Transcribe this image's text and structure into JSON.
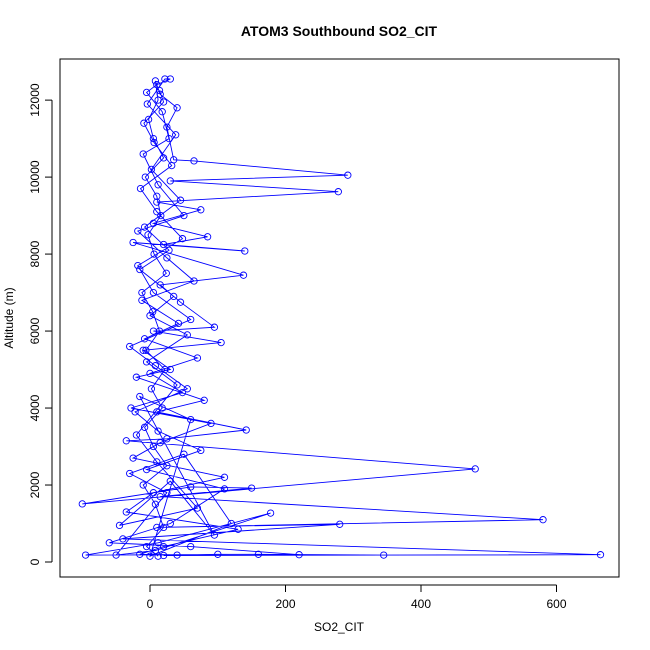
{
  "chart_data": {
    "type": "line",
    "title": "ATOM3 Southbound SO2_CIT",
    "xlabel": "SO2_CIT",
    "ylabel": "Altitude (m)",
    "xlim": [
      -115,
      690
    ],
    "ylim": [
      -300,
      12900
    ],
    "x_ticks": [
      0,
      200,
      400,
      600
    ],
    "x_tick_labels": [
      "0",
      "200",
      "400",
      "600"
    ],
    "y_ticks": [
      0,
      2000,
      4000,
      6000,
      8000,
      10000,
      12000
    ],
    "y_tick_labels": [
      "0",
      "2000",
      "4000",
      "6000",
      "8000",
      "10000",
      "12000"
    ],
    "marker": "open-circle",
    "grid": false,
    "colors": {
      "series": "#0000ff",
      "axis": "#000000",
      "background": "#ffffff"
    },
    "series": [
      {
        "points": [
          [
            12,
            150
          ],
          [
            -5,
            400
          ],
          [
            20,
            900
          ],
          [
            8,
            1500
          ],
          [
            -10,
            2000
          ],
          [
            25,
            2500
          ],
          [
            5,
            3000
          ],
          [
            -8,
            3500
          ],
          [
            18,
            4000
          ],
          [
            2,
            4500
          ],
          [
            22,
            5000
          ],
          [
            -6,
            5500
          ],
          [
            14,
            6000
          ],
          [
            4,
            6500
          ],
          [
            -12,
            7000
          ],
          [
            24,
            7500
          ],
          [
            6,
            8000
          ],
          [
            -3,
            8500
          ],
          [
            16,
            9000
          ],
          [
            10,
            9500
          ],
          [
            -7,
            10000
          ],
          [
            20,
            10500
          ],
          [
            5,
            11000
          ],
          [
            -2,
            11500
          ],
          [
            12,
            12000
          ],
          [
            8,
            12500
          ],
          [
            15,
            12150
          ],
          [
            40,
            11800
          ],
          [
            25,
            11300
          ],
          [
            35,
            10450
          ],
          [
            65,
            10420
          ],
          [
            292,
            10050
          ],
          [
            30,
            9900
          ],
          [
            278,
            9620
          ],
          [
            10,
            9350
          ],
          [
            75,
            9150
          ],
          [
            5,
            8800
          ],
          [
            85,
            8450
          ],
          [
            20,
            8250
          ],
          [
            140,
            8080
          ],
          [
            -25,
            8300
          ],
          [
            138,
            7450
          ],
          [
            15,
            7200
          ],
          [
            45,
            6750
          ],
          [
            95,
            6100
          ],
          [
            5,
            6000
          ],
          [
            105,
            5700
          ],
          [
            -10,
            5500
          ],
          [
            30,
            5000
          ],
          [
            -20,
            4800
          ],
          [
            80,
            4200
          ],
          [
            10,
            3900
          ],
          [
            142,
            3430
          ],
          [
            25,
            3200
          ],
          [
            -35,
            3150
          ],
          [
            480,
            2420
          ],
          [
            -100,
            1510
          ],
          [
            60,
            1950
          ],
          [
            150,
            1920
          ],
          [
            15,
            1700
          ],
          [
            580,
            1100
          ],
          [
            10,
            900
          ],
          [
            280,
            980
          ],
          [
            -40,
            600
          ],
          [
            665,
            190
          ],
          [
            20,
            170
          ],
          [
            345,
            180
          ],
          [
            160,
            200
          ],
          [
            -95,
            180
          ],
          [
            12,
            500
          ],
          [
            178,
            1270
          ],
          [
            8,
            300
          ],
          [
            -50,
            180
          ],
          [
            25,
            1800
          ],
          [
            -30,
            2300
          ],
          [
            50,
            2800
          ],
          [
            120,
            1000
          ],
          [
            0,
            150
          ],
          [
            60,
            3700
          ],
          [
            -15,
            4300
          ],
          [
            95,
            700
          ],
          [
            30,
            2100
          ],
          [
            -45,
            950
          ],
          [
            70,
            1400
          ],
          [
            10,
            2600
          ],
          [
            -20,
            3300
          ],
          [
            40,
            4600
          ],
          [
            -5,
            5200
          ],
          [
            55,
            5900
          ],
          [
            0,
            6400
          ],
          [
            35,
            6900
          ],
          [
            -15,
            7600
          ],
          [
            28,
            8100
          ],
          [
            -8,
            8700
          ],
          [
            45,
            9400
          ],
          [
            2,
            10200
          ],
          [
            38,
            11100
          ],
          [
            -4,
            11900
          ],
          [
            22,
            12550
          ],
          [
            30,
            12550
          ],
          [
            10,
            12400
          ],
          [
            -5,
            12200
          ],
          [
            18,
            11700
          ],
          [
            28,
            11000
          ],
          [
            -10,
            10600
          ],
          [
            12,
            9800
          ],
          [
            50,
            9000
          ],
          [
            -18,
            8600
          ],
          [
            25,
            7900
          ],
          [
            65,
            7300
          ],
          [
            -12,
            6800
          ],
          [
            42,
            6200
          ],
          [
            -8,
            5800
          ],
          [
            70,
            5300
          ],
          [
            0,
            4900
          ],
          [
            48,
            4400
          ],
          [
            -28,
            4000
          ],
          [
            90,
            3600
          ],
          [
            15,
            3100
          ],
          [
            -25,
            2700
          ],
          [
            110,
            2200
          ],
          [
            5,
            1800
          ],
          [
            -35,
            1300
          ],
          [
            130,
            850
          ],
          [
            20,
            400
          ],
          [
            -15,
            200
          ],
          [
            40,
            180
          ],
          [
            100,
            200
          ],
          [
            220,
            190
          ],
          [
            60,
            400
          ],
          [
            -60,
            500
          ],
          [
            30,
            1000
          ],
          [
            110,
            1900
          ],
          [
            -5,
            2400
          ],
          [
            75,
            2900
          ],
          [
            12,
            3400
          ],
          [
            -22,
            3900
          ],
          [
            55,
            4500
          ],
          [
            8,
            5100
          ],
          [
            -30,
            5600
          ],
          [
            60,
            6300
          ],
          [
            5,
            7000
          ],
          [
            -18,
            7700
          ],
          [
            48,
            8400
          ],
          [
            10,
            9100
          ],
          [
            -14,
            9700
          ],
          [
            32,
            10300
          ],
          [
            6,
            10900
          ],
          [
            -9,
            11400
          ],
          [
            20,
            11950
          ],
          [
            14,
            12250
          ]
        ]
      }
    ]
  }
}
